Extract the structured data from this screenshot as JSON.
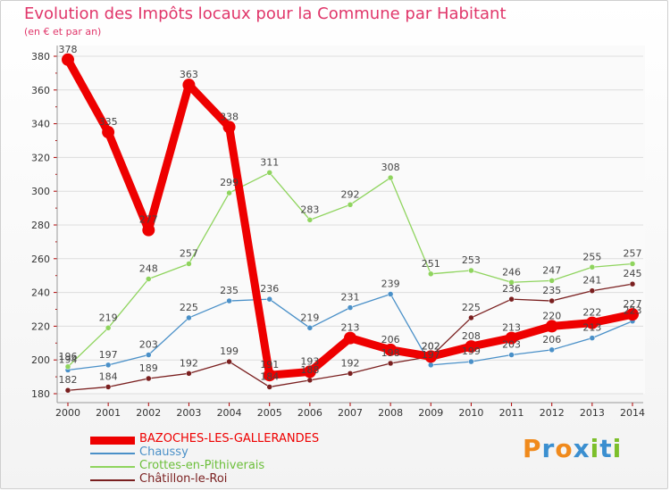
{
  "title": "Evolution des Impôts locaux pour la Commune par Habitant",
  "subtitle": "(en € et par an)",
  "logo": {
    "text": "Proxiti",
    "letters": [
      "P",
      "r",
      "o",
      "x",
      "i",
      "t",
      "i"
    ],
    "colors": [
      "#f08a1c",
      "#3b8fd0",
      "#f08a1c",
      "#3b8fd0",
      "#7cbf2a",
      "#3b8fd0",
      "#7cbf2a"
    ]
  },
  "chart_data": {
    "type": "line",
    "title": "Evolution des Impôts locaux pour la Commune par Habitant",
    "ylabel": "(en € et par an)",
    "xlabel": "",
    "ylim": [
      180,
      380
    ],
    "yticks": [
      180,
      200,
      220,
      240,
      260,
      280,
      300,
      320,
      340,
      360,
      380
    ],
    "categories": [
      "2000",
      "2001",
      "2002",
      "2003",
      "2004",
      "2005",
      "2006",
      "2007",
      "2008",
      "2009",
      "2010",
      "2011",
      "2012",
      "2013",
      "2014"
    ],
    "series": [
      {
        "name": "BAZOCHES-LES-GALLERANDES",
        "color": "#ee0000",
        "emphasis": true,
        "values": [
          378,
          335,
          277,
          363,
          338,
          191,
          193,
          213,
          206,
          202,
          208,
          213,
          220,
          222,
          227
        ],
        "labels": [
          "378",
          "335",
          "277",
          "363",
          "338",
          "191",
          "193",
          "213",
          "206",
          "202",
          "208",
          "213",
          "220",
          "222",
          "227"
        ]
      },
      {
        "name": "Chaussy",
        "color": "#4a90c8",
        "emphasis": false,
        "values": [
          194,
          197,
          203,
          225,
          235,
          236,
          219,
          231,
          239,
          197,
          199,
          203,
          206,
          213,
          223
        ],
        "labels": [
          "194",
          "197",
          "203",
          "225",
          "235",
          "236",
          "219",
          "231",
          "239",
          "197",
          "199",
          "203",
          "206",
          "213",
          "223"
        ]
      },
      {
        "name": "Crottes-en-Pithiverais",
        "color": "#8fd45e",
        "emphasis": false,
        "values": [
          196,
          219,
          248,
          257,
          299,
          311,
          283,
          292,
          308,
          251,
          253,
          246,
          247,
          255,
          257
        ],
        "labels": [
          "196",
          "219",
          "248",
          "257",
          "299",
          "311",
          "283",
          "292",
          "308",
          "251",
          "253",
          "246",
          "247",
          "255",
          "257"
        ]
      },
      {
        "name": "Châtillon-le-Roi",
        "color": "#7a1f1f",
        "emphasis": false,
        "values": [
          182,
          184,
          189,
          192,
          199,
          184,
          188,
          192,
          198,
          202,
          225,
          236,
          235,
          241,
          245
        ],
        "labels": [
          "182",
          "184",
          "189",
          "192",
          "199",
          "184",
          "188",
          "192",
          "198",
          "202",
          "225",
          "236",
          "235",
          "241",
          "245"
        ]
      }
    ],
    "legend": "bottom-left"
  }
}
